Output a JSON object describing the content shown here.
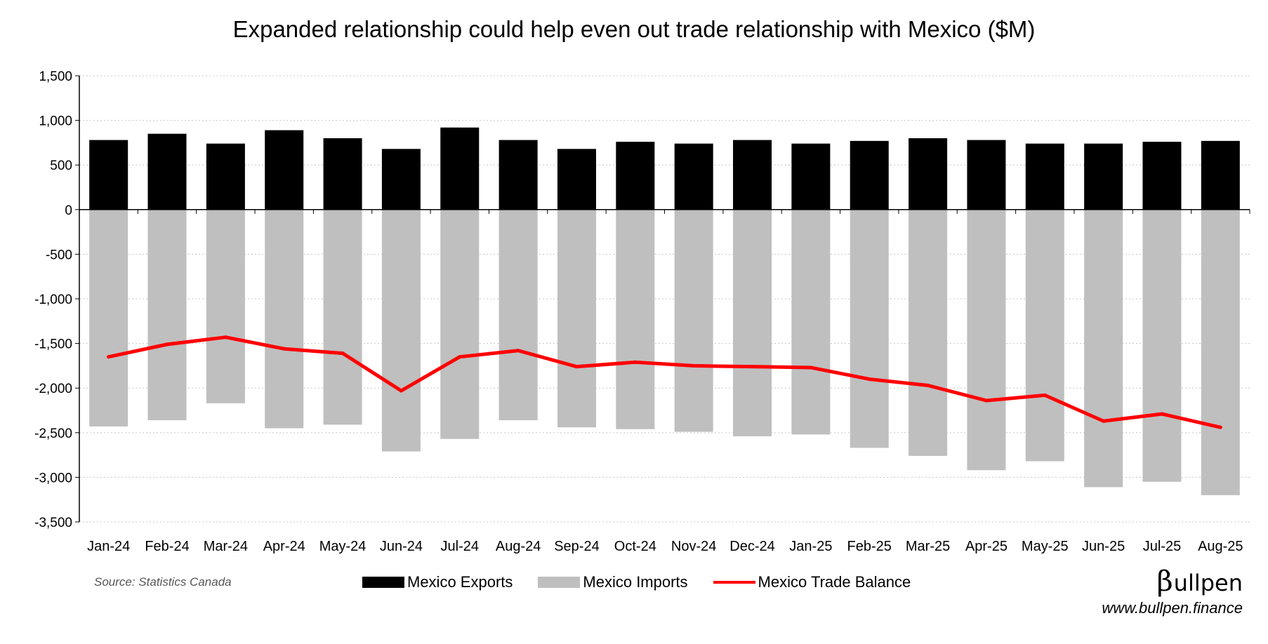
{
  "chart_data": {
    "type": "bar",
    "title": "Expanded relationship could help even out trade relationship with Mexico ($M)",
    "categories": [
      "Jan-24",
      "Feb-24",
      "Mar-24",
      "Apr-24",
      "May-24",
      "Jun-24",
      "Jul-24",
      "Aug-24",
      "Sep-24",
      "Oct-24",
      "Nov-24",
      "Dec-24",
      "Jan-25",
      "Feb-25",
      "Mar-25",
      "Apr-25",
      "May-25",
      "Jun-25",
      "Jul-25",
      "Aug-25"
    ],
    "series": [
      {
        "name": "Mexico Exports",
        "type": "bar",
        "color": "#000000",
        "values": [
          780,
          850,
          740,
          890,
          800,
          680,
          920,
          780,
          680,
          760,
          740,
          780,
          740,
          770,
          800,
          780,
          740,
          740,
          760,
          770
        ]
      },
      {
        "name": "Mexico Imports",
        "type": "bar",
        "color": "#bfbfbf",
        "values": [
          -2430,
          -2360,
          -2170,
          -2450,
          -2410,
          -2710,
          -2570,
          -2360,
          -2440,
          -2460,
          -2490,
          -2540,
          -2520,
          -2670,
          -2760,
          -2920,
          -2820,
          -3110,
          -3050,
          -3200
        ]
      },
      {
        "name": "Mexico Trade Balance",
        "type": "line",
        "color": "#ff0000",
        "values": [
          -1650,
          -1510,
          -1430,
          -1560,
          -1610,
          -2030,
          -1650,
          -1580,
          -1760,
          -1710,
          -1750,
          -1760,
          -1770,
          -1900,
          -1970,
          -2140,
          -2080,
          -2370,
          -2290,
          -2440
        ]
      }
    ],
    "ylim": [
      -3500,
      1500
    ],
    "yticks": [
      1500,
      1000,
      500,
      0,
      -500,
      -1000,
      -1500,
      -2000,
      -2500,
      -3000,
      -3500
    ],
    "ytick_labels": [
      "1,500",
      "1,000",
      "500",
      "0",
      "-500",
      "-1,000",
      "-1,500",
      "-2,000",
      "-2,500",
      "-3,000",
      "-3,500"
    ],
    "xlabel": "",
    "ylabel": "",
    "grid": "horizontal dotted",
    "legend_position": "bottom-center",
    "stacked": true
  },
  "footer": {
    "source": "Source: Statistics Canada",
    "brand_beta": "β",
    "brand_name": "ullpen",
    "brand_url": "www.bullpen.finance"
  }
}
